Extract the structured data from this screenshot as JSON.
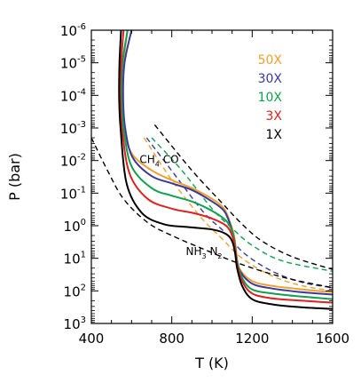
{
  "chart_data": {
    "type": "line",
    "xlabel": "T (K)",
    "ylabel": "P (bar)",
    "xlim": [
      400,
      1600
    ],
    "ylim": [
      1e-06,
      1000
    ],
    "y_scale": "log",
    "y_inverted": true,
    "x_ticks": [
      400,
      800,
      1200,
      1600
    ],
    "x_tick_labels": [
      "400",
      "800",
      "1200",
      "1600"
    ],
    "y_ticks": [
      1e-06,
      1e-05,
      0.0001,
      0.001,
      0.01,
      0.1,
      1,
      10,
      100,
      1000
    ],
    "y_tick_labels": [
      {
        "base": "10",
        "exp": "-6"
      },
      {
        "base": "10",
        "exp": "-5"
      },
      {
        "base": "10",
        "exp": "-4"
      },
      {
        "base": "10",
        "exp": "-3"
      },
      {
        "base": "10",
        "exp": "-2"
      },
      {
        "base": "10",
        "exp": "-1"
      },
      {
        "base": "10",
        "exp": "0"
      },
      {
        "base": "10",
        "exp": "1"
      },
      {
        "base": "10",
        "exp": "2"
      },
      {
        "base": "10",
        "exp": "3"
      }
    ],
    "grid": false,
    "legend_position": "top-right",
    "series": [
      {
        "name": "50X",
        "color": "#f0a030",
        "points": [
          [
            580,
            1e-06
          ],
          [
            560,
            1e-05
          ],
          [
            555,
            0.0001
          ],
          [
            565,
            0.001
          ],
          [
            600,
            0.006
          ],
          [
            700,
            0.02
          ],
          [
            800,
            0.04
          ],
          [
            900,
            0.07
          ],
          [
            1000,
            0.15
          ],
          [
            1060,
            0.3
          ],
          [
            1090,
            0.8
          ],
          [
            1110,
            2
          ],
          [
            1120,
            6
          ],
          [
            1135,
            20
          ],
          [
            1200,
            50
          ],
          [
            1300,
            70
          ],
          [
            1450,
            90
          ],
          [
            1600,
            110
          ]
        ]
      },
      {
        "name": "30X",
        "color": "#3a3a99",
        "points": [
          [
            600,
            1e-06
          ],
          [
            565,
            1e-05
          ],
          [
            558,
            0.0001
          ],
          [
            568,
            0.001
          ],
          [
            605,
            0.008
          ],
          [
            700,
            0.03
          ],
          [
            800,
            0.05
          ],
          [
            900,
            0.08
          ],
          [
            1000,
            0.18
          ],
          [
            1060,
            0.35
          ],
          [
            1090,
            0.9
          ],
          [
            1110,
            2.5
          ],
          [
            1120,
            8
          ],
          [
            1140,
            25
          ],
          [
            1200,
            60
          ],
          [
            1300,
            85
          ],
          [
            1450,
            110
          ],
          [
            1600,
            130
          ]
        ]
      },
      {
        "name": "10X",
        "color": "#10a050",
        "points": [
          [
            580,
            1e-06
          ],
          [
            555,
            1e-05
          ],
          [
            550,
            0.0001
          ],
          [
            560,
            0.001
          ],
          [
            600,
            0.015
          ],
          [
            700,
            0.07
          ],
          [
            800,
            0.12
          ],
          [
            900,
            0.18
          ],
          [
            1000,
            0.35
          ],
          [
            1070,
            0.7
          ],
          [
            1100,
            1.5
          ],
          [
            1115,
            4
          ],
          [
            1125,
            12
          ],
          [
            1150,
            40
          ],
          [
            1200,
            90
          ],
          [
            1300,
            120
          ],
          [
            1450,
            150
          ],
          [
            1600,
            180
          ]
        ]
      },
      {
        "name": "3X",
        "color": "#e02020",
        "points": [
          [
            560,
            1e-06
          ],
          [
            548,
            1e-05
          ],
          [
            544,
            0.0001
          ],
          [
            552,
            0.001
          ],
          [
            590,
            0.025
          ],
          [
            680,
            0.15
          ],
          [
            800,
            0.3
          ],
          [
            900,
            0.4
          ],
          [
            1000,
            0.6
          ],
          [
            1070,
            1
          ],
          [
            1100,
            2
          ],
          [
            1115,
            5
          ],
          [
            1125,
            15
          ],
          [
            1150,
            50
          ],
          [
            1200,
            120
          ],
          [
            1300,
            170
          ],
          [
            1450,
            200
          ],
          [
            1600,
            230
          ]
        ]
      },
      {
        "name": "1X",
        "color": "#000000",
        "points": [
          [
            548,
            1e-06
          ],
          [
            540,
            1e-05
          ],
          [
            538,
            0.0001
          ],
          [
            545,
            0.001
          ],
          [
            575,
            0.05
          ],
          [
            650,
            0.4
          ],
          [
            760,
            0.9
          ],
          [
            880,
            1.1
          ],
          [
            1000,
            1.3
          ],
          [
            1070,
            1.8
          ],
          [
            1100,
            3
          ],
          [
            1115,
            7
          ],
          [
            1125,
            20
          ],
          [
            1150,
            70
          ],
          [
            1200,
            180
          ],
          [
            1300,
            260
          ],
          [
            1450,
            320
          ],
          [
            1600,
            360
          ]
        ]
      }
    ],
    "dashed_lines": [
      {
        "color": "#f0a030",
        "points": [
          [
            662,
            0.002
          ],
          [
            800,
            0.04
          ],
          [
            950,
            0.6
          ],
          [
            1050,
            2.5
          ],
          [
            1150,
            10
          ],
          [
            1300,
            35
          ],
          [
            1450,
            70
          ],
          [
            1600,
            100
          ]
        ]
      },
      {
        "color": "#3a3a99",
        "points": [
          [
            675,
            0.002
          ],
          [
            820,
            0.03
          ],
          [
            960,
            0.4
          ],
          [
            1060,
            1.5
          ],
          [
            1160,
            7
          ],
          [
            1300,
            25
          ],
          [
            1450,
            55
          ],
          [
            1600,
            80
          ]
        ]
      },
      {
        "color": "#10a050",
        "points": [
          [
            700,
            0.002
          ],
          [
            850,
            0.02
          ],
          [
            1000,
            0.3
          ],
          [
            1100,
            1.2
          ],
          [
            1200,
            4
          ],
          [
            1350,
            12
          ],
          [
            1600,
            25
          ]
        ]
      },
      {
        "color": "#000000",
        "points": [
          [
            715,
            0.0008
          ],
          [
            900,
            0.02
          ],
          [
            1050,
            0.2
          ],
          [
            1150,
            0.9
          ],
          [
            1250,
            3
          ],
          [
            1400,
            9
          ],
          [
            1600,
            22
          ]
        ]
      },
      {
        "color": "#000000",
        "points": [
          [
            400,
            0.002
          ],
          [
            480,
            0.02
          ],
          [
            560,
            0.15
          ],
          [
            680,
            0.8
          ],
          [
            800,
            2
          ],
          [
            950,
            5
          ],
          [
            1100,
            12
          ],
          [
            1250,
            25
          ],
          [
            1400,
            45
          ],
          [
            1600,
            80
          ]
        ]
      }
    ],
    "annotations": [
      {
        "base": "CH",
        "sub": "4",
        "after": " CO",
        "x": 640,
        "y": 0.012
      },
      {
        "base": "NH",
        "sub": "3",
        "after": " N",
        "sub2": "2",
        "x": 870,
        "y": 8
      }
    ]
  }
}
